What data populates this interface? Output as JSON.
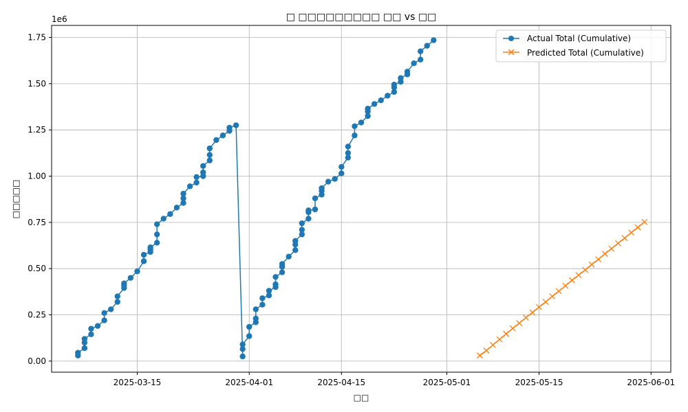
{
  "chart_data": {
    "type": "line",
    "title": "□ □□□□□□□□□ □□ vs □□",
    "xlabel": "□□",
    "ylabel": "□□□□□",
    "offset_text": "1e6",
    "x_tick_labels": [
      "2025-03-15",
      "2025-04-01",
      "2025-04-15",
      "2025-05-01",
      "2025-05-15",
      "2025-06-01"
    ],
    "y_tick_labels": [
      "0.00",
      "0.25",
      "0.50",
      "0.75",
      "1.00",
      "1.25",
      "1.50",
      "1.75"
    ],
    "xlim": [
      "2025-03-02",
      "2025-06-04"
    ],
    "ylim": [
      -60000,
      1815000
    ],
    "grid": true,
    "legend_position": "top-right",
    "series": [
      {
        "name": "Actual Total (Cumulative)",
        "color": "#1f77b4",
        "marker": "circle",
        "points": [
          [
            "2025-03-06",
            30000
          ],
          [
            "2025-03-06",
            45000
          ],
          [
            "2025-03-07",
            70000
          ],
          [
            "2025-03-07",
            100000
          ],
          [
            "2025-03-07",
            120000
          ],
          [
            "2025-03-08",
            145000
          ],
          [
            "2025-03-08",
            175000
          ],
          [
            "2025-03-09",
            190000
          ],
          [
            "2025-03-10",
            220000
          ],
          [
            "2025-03-10",
            260000
          ],
          [
            "2025-03-11",
            280000
          ],
          [
            "2025-03-12",
            320000
          ],
          [
            "2025-03-12",
            350000
          ],
          [
            "2025-03-13",
            395000
          ],
          [
            "2025-03-13",
            410000
          ],
          [
            "2025-03-13",
            420000
          ],
          [
            "2025-03-14",
            450000
          ],
          [
            "2025-03-15",
            485000
          ],
          [
            "2025-03-16",
            540000
          ],
          [
            "2025-03-16",
            575000
          ],
          [
            "2025-03-17",
            590000
          ],
          [
            "2025-03-17",
            605000
          ],
          [
            "2025-03-17",
            615000
          ],
          [
            "2025-03-18",
            640000
          ],
          [
            "2025-03-18",
            685000
          ],
          [
            "2025-03-18",
            740000
          ],
          [
            "2025-03-19",
            770000
          ],
          [
            "2025-03-20",
            795000
          ],
          [
            "2025-03-21",
            830000
          ],
          [
            "2025-03-22",
            855000
          ],
          [
            "2025-03-22",
            880000
          ],
          [
            "2025-03-22",
            905000
          ],
          [
            "2025-03-23",
            945000
          ],
          [
            "2025-03-24",
            965000
          ],
          [
            "2025-03-24",
            995000
          ],
          [
            "2025-03-25",
            1000000
          ],
          [
            "2025-03-25",
            1020000
          ],
          [
            "2025-03-25",
            1055000
          ],
          [
            "2025-03-26",
            1085000
          ],
          [
            "2025-03-26",
            1115000
          ],
          [
            "2025-03-26",
            1150000
          ],
          [
            "2025-03-27",
            1195000
          ],
          [
            "2025-03-28",
            1220000
          ],
          [
            "2025-03-29",
            1245000
          ],
          [
            "2025-03-29",
            1262000
          ],
          [
            "2025-03-30",
            1275000
          ],
          [
            "2025-03-31",
            25000
          ],
          [
            "2025-03-31",
            65000
          ],
          [
            "2025-03-31",
            90000
          ],
          [
            "2025-04-01",
            135000
          ],
          [
            "2025-04-01",
            185000
          ],
          [
            "2025-04-02",
            210000
          ],
          [
            "2025-04-02",
            230000
          ],
          [
            "2025-04-02",
            280000
          ],
          [
            "2025-04-03",
            305000
          ],
          [
            "2025-04-03",
            340000
          ],
          [
            "2025-04-04",
            355000
          ],
          [
            "2025-04-04",
            380000
          ],
          [
            "2025-04-05",
            400000
          ],
          [
            "2025-04-05",
            415000
          ],
          [
            "2025-04-05",
            455000
          ],
          [
            "2025-04-06",
            480000
          ],
          [
            "2025-04-06",
            510000
          ],
          [
            "2025-04-06",
            525000
          ],
          [
            "2025-04-07",
            565000
          ],
          [
            "2025-04-08",
            600000
          ],
          [
            "2025-04-08",
            630000
          ],
          [
            "2025-04-08",
            650000
          ],
          [
            "2025-04-09",
            685000
          ],
          [
            "2025-04-09",
            710000
          ],
          [
            "2025-04-09",
            745000
          ],
          [
            "2025-04-10",
            770000
          ],
          [
            "2025-04-10",
            805000
          ],
          [
            "2025-04-10",
            815000
          ],
          [
            "2025-04-11",
            820000
          ],
          [
            "2025-04-11",
            880000
          ],
          [
            "2025-04-12",
            900000
          ],
          [
            "2025-04-12",
            920000
          ],
          [
            "2025-04-12",
            935000
          ],
          [
            "2025-04-13",
            970000
          ],
          [
            "2025-04-14",
            985000
          ],
          [
            "2025-04-15",
            1015000
          ],
          [
            "2025-04-15",
            1050000
          ],
          [
            "2025-04-16",
            1100000
          ],
          [
            "2025-04-16",
            1125000
          ],
          [
            "2025-04-16",
            1160000
          ],
          [
            "2025-04-17",
            1220000
          ],
          [
            "2025-04-17",
            1270000
          ],
          [
            "2025-04-18",
            1290000
          ],
          [
            "2025-04-19",
            1325000
          ],
          [
            "2025-04-19",
            1350000
          ],
          [
            "2025-04-19",
            1365000
          ],
          [
            "2025-04-20",
            1390000
          ],
          [
            "2025-04-21",
            1410000
          ],
          [
            "2025-04-22",
            1435000
          ],
          [
            "2025-04-23",
            1455000
          ],
          [
            "2025-04-23",
            1480000
          ],
          [
            "2025-04-23",
            1495000
          ],
          [
            "2025-04-24",
            1510000
          ],
          [
            "2025-04-24",
            1530000
          ],
          [
            "2025-04-25",
            1550000
          ],
          [
            "2025-04-25",
            1565000
          ],
          [
            "2025-04-26",
            1610000
          ],
          [
            "2025-04-27",
            1630000
          ],
          [
            "2025-04-27",
            1675000
          ],
          [
            "2025-04-28",
            1705000
          ],
          [
            "2025-04-29",
            1735000
          ]
        ]
      },
      {
        "name": "Predicted Total (Cumulative)",
        "color": "#ff7f0e",
        "marker": "x",
        "points": [
          [
            "2025-05-06",
            30000
          ],
          [
            "2025-05-07",
            57000
          ],
          [
            "2025-05-08",
            87000
          ],
          [
            "2025-05-09",
            117000
          ],
          [
            "2025-05-10",
            147000
          ],
          [
            "2025-05-11",
            177000
          ],
          [
            "2025-05-12",
            205000
          ],
          [
            "2025-05-13",
            235000
          ],
          [
            "2025-05-14",
            263000
          ],
          [
            "2025-05-15",
            292000
          ],
          [
            "2025-05-16",
            320000
          ],
          [
            "2025-05-17",
            350000
          ],
          [
            "2025-05-18",
            378000
          ],
          [
            "2025-05-19",
            407000
          ],
          [
            "2025-05-20",
            437000
          ],
          [
            "2025-05-21",
            465000
          ],
          [
            "2025-05-22",
            493000
          ],
          [
            "2025-05-23",
            522000
          ],
          [
            "2025-05-24",
            550000
          ],
          [
            "2025-05-25",
            580000
          ],
          [
            "2025-05-26",
            608000
          ],
          [
            "2025-05-27",
            637000
          ],
          [
            "2025-05-28",
            665000
          ],
          [
            "2025-05-29",
            695000
          ],
          [
            "2025-05-30",
            723000
          ],
          [
            "2025-05-31",
            752000
          ]
        ]
      }
    ]
  }
}
